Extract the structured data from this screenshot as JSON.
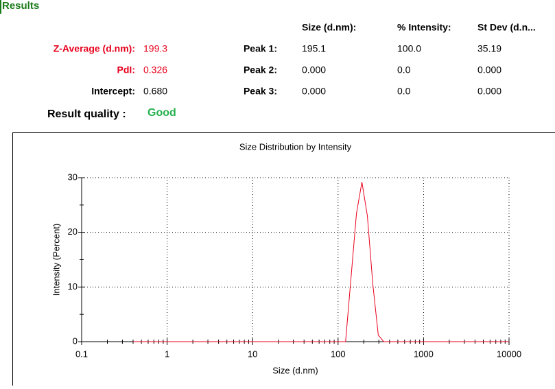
{
  "header": {
    "title": "Results"
  },
  "summary": {
    "rows": [
      {
        "label": "Z-Average (d.nm):",
        "value": "199.3"
      },
      {
        "label": "PdI:",
        "value": "0.326"
      },
      {
        "label": "Intercept:",
        "value": "0.680"
      }
    ],
    "quality_label": "Result quality :",
    "quality": "Good"
  },
  "peaks": {
    "columns": [
      "Size (d.nm):",
      "% Intensity:",
      "St Dev (d.n..."
    ],
    "rows": [
      {
        "label": "Peak 1:",
        "values": [
          "195.1",
          "100.0",
          "35.19"
        ]
      },
      {
        "label": "Peak 2:",
        "values": [
          "0.000",
          "0.0",
          "0.000"
        ]
      },
      {
        "label": "Peak 3:",
        "values": [
          "0.000",
          "0.0",
          "0.000"
        ]
      }
    ]
  },
  "chart_data": {
    "type": "line",
    "title": "Size Distribution by Intensity",
    "x_label": "Size (d.nm)",
    "y_label": "Intensity (Percent)",
    "x": [
      0.4,
      1,
      10,
      100,
      122.4,
      164.2,
      190.1,
      220.2,
      255.0,
      295.3,
      342.0,
      1000,
      10000
    ],
    "values": [
      0,
      0,
      0,
      0,
      0,
      23.5,
      29.2,
      23.0,
      10.5,
      1.2,
      0,
      0,
      0
    ],
    "color": "#e8001c",
    "xlim": [
      0.1,
      10000
    ],
    "xticks": [
      0.1,
      1,
      10,
      100,
      1000,
      10000
    ],
    "x_log": true,
    "ylim": [
      0,
      30
    ],
    "yticks": [
      0,
      10,
      20,
      30
    ],
    "grid": true
  }
}
